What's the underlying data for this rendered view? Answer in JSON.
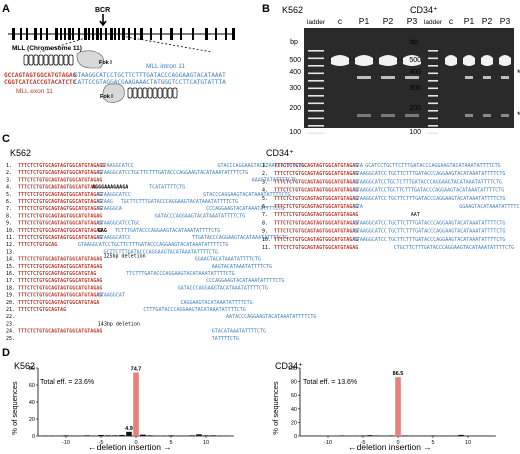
{
  "panels": {
    "A": {
      "label": "A",
      "breakpoint_label": "BCR",
      "chromosome_label": "MLL (Chromosome 11)",
      "enzyme_label": "Fok I",
      "intron_label": "MLL intron 11",
      "exon_label": "MLL exon 11",
      "seq_top_red": "GCCAGTAGTGGCATGTAGAG",
      "seq_top_blue": "GTAAGGCATCCTGCTTCTTTGATACCCAGGAAGTACATAAAT",
      "seq_bot_red": "CGGTCATCACCGTACATCTC",
      "seq_bot_blue": "CATTCCGTAGGACGAAGAAACTATGGGTCCTTCATGTATTTA"
    },
    "B": {
      "label": "B",
      "gel_left": {
        "title": "K562",
        "lanes": [
          "ladder",
          "c",
          "P1",
          "P2",
          "P3"
        ],
        "bp_label": "bp",
        "markers": [
          "500",
          "400",
          "300",
          "200",
          "100"
        ]
      },
      "gel_right": {
        "title": "CD34⁺",
        "lanes": [
          "ladder",
          "c",
          "P1",
          "P2",
          "P3"
        ],
        "bp_label": "bp",
        "markers": [
          "500",
          "400",
          "300",
          "200",
          "100"
        ]
      },
      "asterisk": "*"
    },
    "C": {
      "label": "C",
      "left_title": "K562",
      "right_title": "CD34⁺",
      "red_part": "TTTCTCTGTGCAGTAGTGGCATGTAGAG",
      "blue_full": "GTAAGGCATCCTGCTTCTTTGATACCCAGGAAGTACATAAATATTTTCTG",
      "left_rows": [
        {
          "n": "1.",
          "red": "TTTCTCTGTGCAGTAGTGGCATGTAGAGG",
          "ins": "",
          "blue": "GTAAGGCATCC",
          "gap": 30,
          "tail": "GTACCCAGGAAGTACATAAATATTTTCTG"
        },
        {
          "n": "2.",
          "red": "TTTCTCTGTGCAGTAGTGGCATGTAGAG",
          "ins": "",
          "blue": "GTAAGGCATCCTGCTTCTTTGATACCCAGGAAGTACATAAATATTTTCTG",
          "gap": 0,
          "tail": ""
        },
        {
          "n": "3.",
          "red": "TTTCTCTGTGCAGTAGTGGCATGTAGAG",
          "ins": "",
          "blue": "",
          "gap": 54,
          "tail": "AAAGTATATTTTCTG"
        },
        {
          "n": "4.",
          "red": "TTTCTCTGTGCAGTAGTGGCATGTAG",
          "ins": "AGGGAAAGAAGA",
          "blue": "",
          "gap": 8,
          "tail": "TCATATTTTCTG"
        },
        {
          "n": "5.",
          "red": "TTTCTCTGTGCAGTAGTGGCATGTAGAG",
          "ins": "",
          "blue": "GTAAGGCATCC",
          "gap": 26,
          "tail": "GTACCCAGGAAGTACATAAATATTTTCTG"
        },
        {
          "n": "6.",
          "red": "TTTCTCTGTGCAGTAGTGGCATGTAGAG",
          "ins": "",
          "blue": "GTAAG",
          "gap": 3,
          "tail": "TGCTTCTTTGATACCCAGGAAGTACATAAATATTTTCTG"
        },
        {
          "n": "7.",
          "red": "TTTCTCTGTGCAGTAGTGGCATGTAGAG",
          "ins": "",
          "blue": "GTAAGGCA",
          "gap": 30,
          "tail": "CCCAGGAAGTACATAAATATTTTCTG"
        },
        {
          "n": "8.",
          "red": "TTTCTCTGTGCAGTAGTGGCATGTAGAG",
          "ins": "",
          "blue": "",
          "gap": 20,
          "tail": "GATACCCAGGAAGTACATAAATATTTTCTG"
        },
        {
          "n": "9.",
          "red": "TTTCTCTGTGCAGTAGTGGCATGTAGAG",
          "ins": "",
          "blue": "GTAAGGCATCCTGC",
          "gap": 0,
          "tail": ""
        },
        {
          "n": "10.",
          "red": "TTTCTCTGTGCAGTAGTGGCATGTAGAG",
          "ins": "GAG",
          "blue": "",
          "gap": 3,
          "tail": "TCTTTGATACCCAGGAAGTACATAAATATTTTCTG"
        },
        {
          "n": "11.",
          "red": "TTTCTCTGTGCAGTAGTGGCATGTAGAG",
          "ins": "",
          "blue": "GTAAGGCATCC",
          "gap": 22,
          "tail": "TTGATACCCAGGAAGTACATAAATATTTTCTG"
        },
        {
          "n": "12.",
          "red": "TTTCTCTGTGCAG",
          "ins": "",
          "blue": "",
          "gap": 8,
          "tail": "GTAAGGCATCCTGCTTCTTTGATACCCAGGAAGTACATAAATATTTTCTG"
        },
        {
          "n": "13.",
          "red": "",
          "ins": "",
          "blue": "",
          "gap": 2,
          "tail": "GCTTCTTTGATACCCAGGAAGTACATAAATATTTTCTG",
          "note": "125bp deletion"
        },
        {
          "n": "14.",
          "red": "TTTCTCTGTGCAGTAGTGGCATGTAGAG",
          "ins": "",
          "blue": "",
          "gap": 34,
          "tail": "GGAAGTACATAAATATTTTCTG"
        },
        {
          "n": "15.",
          "red": "TTTCTCTGTGCAGTAGTGGCATGTAGAG",
          "ins": "",
          "blue": "",
          "gap": 40,
          "tail": "AAGTACATAAATATTTTCTG"
        },
        {
          "n": "16.",
          "red": "TTTCTCTGTGCAGTAGTGGCATGTAG",
          "ins": "",
          "blue": "",
          "gap": 12,
          "tail": "TTCTTTGATACCCAGGAAGTACATAAATATTTTCTG"
        },
        {
          "n": "17.",
          "red": "TTTCTCTGTGCAGTAGTGGCATGTAGAG",
          "ins": "",
          "blue": "",
          "gap": 38,
          "tail": "CCCAGGAAGTACATAAATATTTTCTG"
        },
        {
          "n": "18.",
          "red": "TTTCTCTGTGCAGTAGTGGCATGTAGAG",
          "ins": "",
          "blue": "",
          "gap": 28,
          "tail": "GATACCCAGGAAGTACATAAATATTTTCTG"
        },
        {
          "n": "19.",
          "red": "TTTCTCTGTGCAGTAGTGGCATGTAGAG",
          "ins": "",
          "blue": "GTAAGGCAT",
          "gap": 0,
          "tail": ""
        },
        {
          "n": "20.",
          "red": "TTTCTCTGTGCAGTAGTGGCATGTAGA",
          "ins": "",
          "blue": "",
          "gap": 30,
          "tail": "CAGGAAGTACATAAATATTTTCTG"
        },
        {
          "n": "21.",
          "red": "TTTCTCTGTGCAGTAG",
          "ins": "",
          "blue": "",
          "gap": 28,
          "tail": "CTTTGATACCCAGGAAGTACATAAATATTTTCTG"
        },
        {
          "n": "22.",
          "red": "",
          "ins": "",
          "blue": "",
          "gap": 45,
          "tail": "AATACCCAGGAAGTACATAAATATTTTCTG"
        },
        {
          "n": "23.",
          "red": "",
          "ins": "",
          "blue": "",
          "gap": 0,
          "tail": "",
          "note": "143bp deletion"
        },
        {
          "n": "24.",
          "red": "TTTCTCTGTGCAGTAGTGGCATGTAGAG",
          "ins": "",
          "blue": "",
          "gap": 40,
          "tail": "GTACATAAATATTTTCTG"
        },
        {
          "n": "25.",
          "red": "",
          "ins": "",
          "blue": "",
          "gap": 40,
          "tail": "TATTTTCTG"
        }
      ],
      "right_rows": [
        {
          "n": "1.",
          "red": "TTTCTCTGTGCAGTAGTGGCATGTAGAG",
          "ins": "",
          "blue": "GTA",
          "gap": 1,
          "tail": "GCATCCTGCTTCTTTGATACCCAGGAAGTACATAAATATTTTCTG"
        },
        {
          "n": "2.",
          "red": "TTTCTCTGTGCAGTAGTGGCATGTAGAG",
          "ins": "",
          "blue": "GTAAGGCATCC",
          "gap": 1,
          "tail": "TGCTTCTTTGATACCCAGGAAGTACATAAATATTTTCTG"
        },
        {
          "n": "3.",
          "red": "TTTCTCTGTGCAGTAGTGGCATGTAGAG",
          "ins": "",
          "blue": "GTAAGGCATCCTGC",
          "gap": 1,
          "tail": "TCTTTGATACCCAGGAAGTACATAAATATTTTCTG"
        },
        {
          "n": "4.",
          "red": "TTTCTCTGTGCAGTAGTGGCATGTAGAG",
          "ins": "",
          "blue": "GTAAGGCATCCTGCTTCTTTGATACCCAGGAAGTACATAAATATTTTCTG",
          "gap": 0,
          "tail": ""
        },
        {
          "n": "5.",
          "red": "TTTCTCTGTGCAGTAGTGGCATGTAGAG",
          "ins": "",
          "blue": "GTAAGGCATCC",
          "gap": 1,
          "tail": "TGCTTCTTTGATACCCAGGAAGTACATAAATATTTTCTG"
        },
        {
          "n": "6.",
          "red": "TTTCTCTGTGCAGTAGTGGCATGTAGAG",
          "ins": "",
          "blue": "GTA",
          "gap": 34,
          "tail": "GGAAGTACATAAATATTTTCTG"
        },
        {
          "n": "7.",
          "red": "TTTCTCTGTGCAGTAGTGGCATGTAGAG",
          "ins": "",
          "blue": "",
          "gap": 20,
          "note": "AAT",
          "tail": ""
        },
        {
          "n": "8.",
          "red": "TTTCTCTGTGCAGTAGTGGCATGTAGAG",
          "ins": "",
          "blue": "GTAAGGCATCC",
          "gap": 1,
          "tail": "TGCTTCTTTGATACCCAGGAAGTACATAAATATTTTCTG"
        },
        {
          "n": "9.",
          "red": "TTTCTCTGTGCAGTAGTGGCATGTAGAG",
          "ins": "",
          "blue": "GTAAGGCATCC",
          "gap": 1,
          "tail": "TGCTTCTTTGATACCCAGGAAGTACATAAATATTTTCTG"
        },
        {
          "n": "10.",
          "red": "TTTCTCTGTGCAGTAGTGGCATGTAGAG",
          "ins": "",
          "blue": "GTAAGGCATCC",
          "gap": 1,
          "tail": "TGCTTCTTTGATACCCAGGAAGTACATAAATATTTTCTG"
        },
        {
          "n": "11.",
          "red": "TTTCTCTGTGCAGTAGTGGCATGTAGAG",
          "ins": "",
          "blue": "",
          "gap": 14,
          "tail": "CTGCTTCTTTGATACCCAGGAAGTACATAAATATTTTCTG"
        }
      ]
    },
    "D": {
      "label": "D",
      "left": {
        "title": "K562",
        "total": "Total eff. = 23.6%",
        "peak_label": "74.7",
        "small_label": "4.9"
      },
      "right": {
        "title": "CD34⁺",
        "total": "Total eff. = 13.6%",
        "peak_label": "86.5"
      },
      "ylabel": "% of sequences",
      "xlabel": "←deletion  insertion →"
    }
  },
  "chart_data": [
    {
      "type": "bar",
      "title": "K562",
      "subtitle": "Total eff. = 23.6%",
      "xlabel": "←deletion  insertion →",
      "ylabel": "% of sequences",
      "ylim": [
        0,
        80
      ],
      "yticks": [
        0,
        20,
        40,
        60,
        80
      ],
      "xticks": [
        -10,
        -5,
        0,
        5,
        10
      ],
      "x": [
        -13,
        -12,
        -11,
        -10,
        -9,
        -8,
        -7,
        -6,
        -5,
        -4,
        -3,
        -2,
        -1,
        0,
        1,
        2,
        3,
        4,
        5,
        6,
        7,
        8,
        9,
        10,
        11,
        12,
        13
      ],
      "values": [
        0.5,
        0.4,
        0.4,
        0.8,
        0.4,
        0.4,
        0.8,
        0.4,
        1.2,
        0.8,
        0.8,
        1.2,
        4.9,
        74.7,
        1.6,
        0.8,
        0.4,
        0.4,
        0.8,
        0.4,
        0.4,
        0.8,
        2.0,
        0.8,
        0.8,
        0.4,
        0.4
      ],
      "highlight_index": 13,
      "data_labels": {
        "0": "74.7",
        "-1": "4.9"
      }
    },
    {
      "type": "bar",
      "title": "CD34⁺",
      "subtitle": "Total eff. = 13.6%",
      "xlabel": "←deletion  insertion →",
      "ylabel": "% of sequences",
      "ylim": [
        0,
        100
      ],
      "yticks": [
        0,
        20,
        40,
        60,
        80,
        100
      ],
      "xticks": [
        -10,
        -5,
        0,
        5,
        10
      ],
      "x": [
        -13,
        -12,
        -11,
        -10,
        -9,
        -8,
        -7,
        -6,
        -5,
        -4,
        -3,
        -2,
        -1,
        0,
        1,
        2,
        3,
        4,
        5,
        6,
        7,
        8,
        9,
        10,
        11,
        12,
        13
      ],
      "values": [
        0.4,
        0.4,
        0.4,
        0.4,
        0.4,
        0.8,
        0.4,
        0.4,
        0.8,
        1.2,
        0.8,
        0.4,
        0.8,
        86.5,
        0.8,
        0.4,
        0.4,
        0.4,
        0.8,
        0.4,
        0.4,
        0.4,
        1.6,
        0.4,
        0.4,
        0.4,
        0.4
      ],
      "highlight_index": 13,
      "data_labels": {
        "0": "86.5"
      }
    }
  ],
  "colors": {
    "red": "#c0392b",
    "blue": "#3f7fbf",
    "bar": "#111111",
    "highlight": "#e8807a"
  }
}
